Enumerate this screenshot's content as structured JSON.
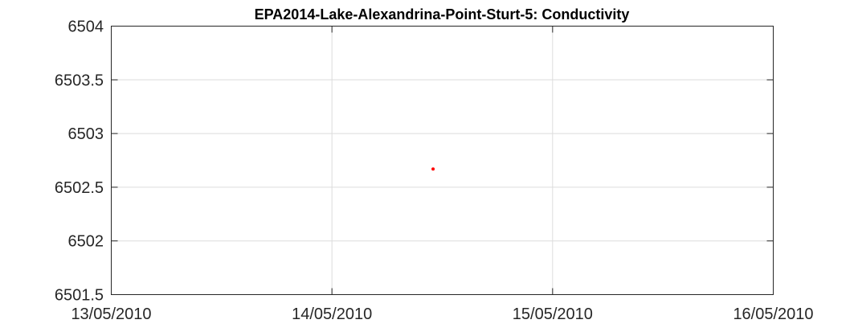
{
  "chart_data": {
    "type": "scatter",
    "title": "EPA2014-Lake-Alexandrina-Point-Sturt-5: Conductivity",
    "xlabel": "",
    "ylabel": "",
    "x_ticks": [
      "13/05/2010",
      "14/05/2010",
      "15/05/2010",
      "16/05/2010"
    ],
    "xlim": [
      "2010-05-13",
      "2010-05-16"
    ],
    "y_ticks": [
      "6501.5",
      "6502",
      "6502.5",
      "6503",
      "6503.5",
      "6504"
    ],
    "ylim": [
      6501.5,
      6504
    ],
    "grid": true,
    "legend": "none",
    "series": [
      {
        "color": "#ff0000",
        "points": [
          {
            "x": "2010-05-14T11:00",
            "y": 6502.67
          }
        ]
      }
    ]
  }
}
